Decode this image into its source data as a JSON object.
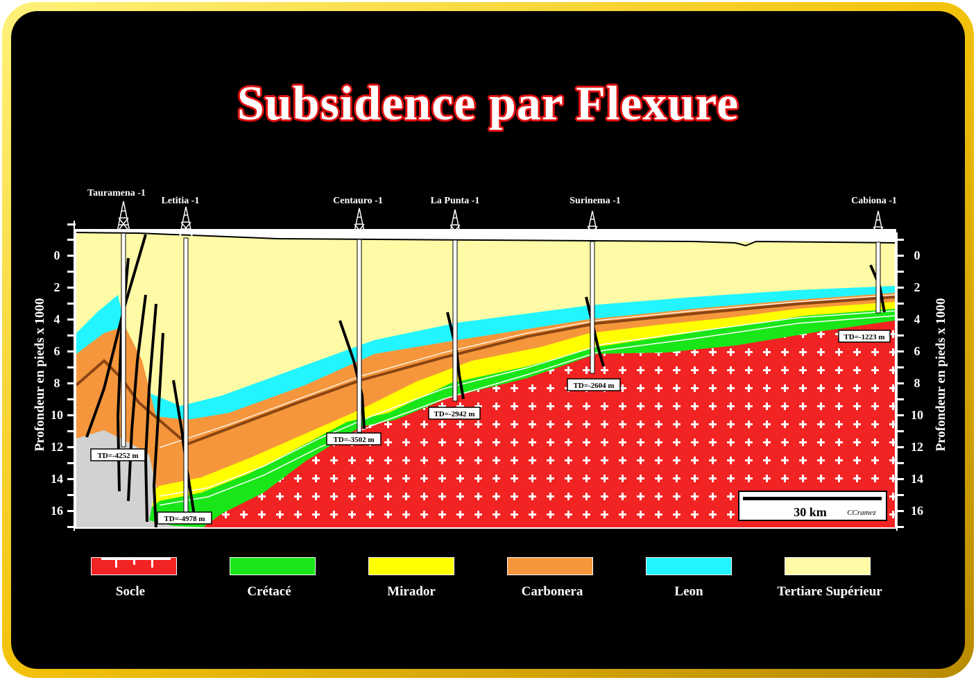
{
  "title": "Subsidence par Flexure",
  "wells": [
    {
      "name": "Tauramena -1",
      "td": "TD=-4252 m"
    },
    {
      "name": "Letitia -1",
      "td": "TD=-4978 m"
    },
    {
      "name": "Centauro -1",
      "td": "TD=-3502 m"
    },
    {
      "name": "La Punta -1",
      "td": "TD=-2942 m"
    },
    {
      "name": "Surinema -1",
      "td": "TD=-2604 m"
    },
    {
      "name": "Cabiona -1",
      "td": "TD=-1223 m"
    }
  ],
  "axis": {
    "left_title": "Profondeur en pieds x 1000",
    "right_title": "Profondeur en pieds x 1000",
    "ticks": [
      "0",
      "2",
      "4",
      "6",
      "8",
      "10",
      "12",
      "14",
      "16"
    ]
  },
  "scale_bar": {
    "label": "30 km",
    "credit": "CCramez"
  },
  "legend": [
    {
      "label": "Socle",
      "color": "#f22323"
    },
    {
      "label": "Crétacé",
      "color": "#19e619"
    },
    {
      "label": "Mirador",
      "color": "#ffff00"
    },
    {
      "label": "Carbonera",
      "color": "#f5963c"
    },
    {
      "label": "Leon",
      "color": "#22f5ff"
    },
    {
      "label": "Tertiare Supérieur",
      "color": "#fffaa5"
    }
  ],
  "colors": {
    "frame_gold": "#f2c20a",
    "background": "#000000",
    "title_outline": "#e01010"
  }
}
